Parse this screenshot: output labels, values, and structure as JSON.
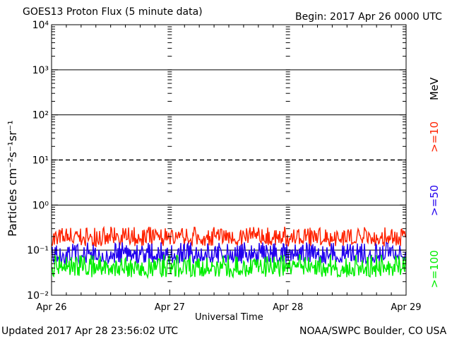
{
  "header": {
    "title": "GOES13 Proton Flux (5 minute data)",
    "begin": "Begin: 2017 Apr 26 0000 UTC"
  },
  "footer": {
    "updated": "Updated 2017 Apr 28 23:56:02 UTC",
    "source": "NOAA/SWPC Boulder, CO USA"
  },
  "axes": {
    "xlabel": "Universal Time",
    "ylabel": "Particles cm⁻²s⁻¹sr⁻¹",
    "unit": "MeV"
  },
  "legend": [
    {
      "label": ">=10",
      "color": "#ff2200"
    },
    {
      "label": ">=50",
      "color": "#2200ee"
    },
    {
      "label": ">=100",
      "color": "#00ee00"
    }
  ],
  "chart_data": {
    "type": "line",
    "title": "GOES13 Proton Flux (5 minute data)",
    "xlabel": "Universal Time",
    "ylabel": "Particles cm⁻²s⁻¹sr⁻¹",
    "yscale": "log",
    "ylim": [
      0.01,
      10000
    ],
    "xlim": [
      "Apr 26",
      "Apr 29"
    ],
    "x_ticks": [
      "Apr 26",
      "Apr 27",
      "Apr 28",
      "Apr 29"
    ],
    "y_ticks": [
      "10⁻²",
      "10⁻¹",
      "10⁰",
      "10¹",
      "10²",
      "10³",
      "10⁴"
    ],
    "threshold_lines": [
      0.1,
      1,
      100,
      1000
    ],
    "dashed_lines": [
      10
    ],
    "grid": false,
    "series": [
      {
        "name": ">=10",
        "color": "#ff2200",
        "baseline": 0.18,
        "low": 0.12,
        "high": 0.33
      },
      {
        "name": ">=50",
        "color": "#2200ee",
        "baseline": 0.075,
        "low": 0.05,
        "high": 0.15
      },
      {
        "name": ">=100",
        "color": "#00ee00",
        "baseline": 0.04,
        "low": 0.025,
        "high": 0.08
      }
    ]
  }
}
